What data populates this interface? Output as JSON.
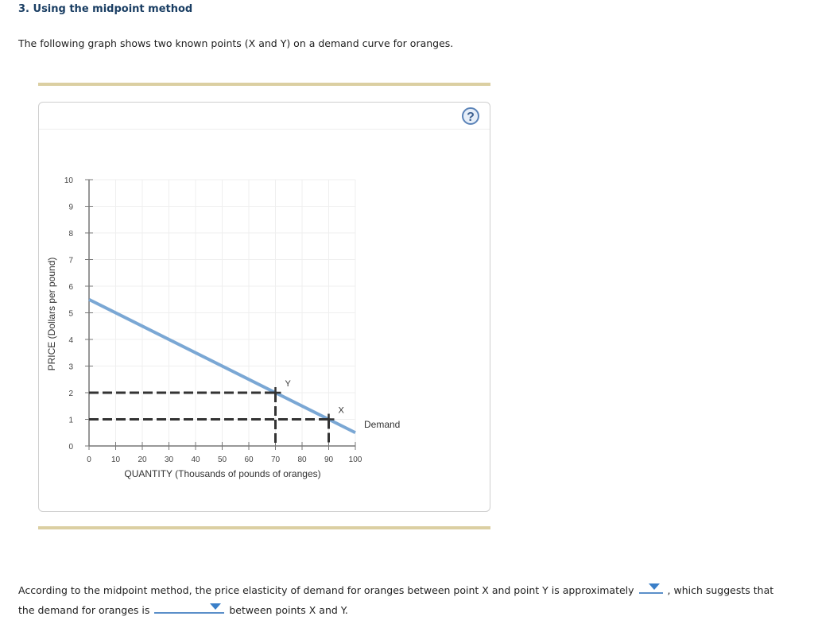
{
  "question": {
    "title": "3. Using the midpoint method",
    "intro": "The following graph shows two known points (X and Y) on a demand curve for oranges."
  },
  "panel": {
    "help_icon": "?"
  },
  "chart_data": {
    "type": "line",
    "title": "",
    "xlabel": "QUANTITY (Thousands of pounds of oranges)",
    "ylabel": "PRICE (Dollars per pound)",
    "xlim": [
      0,
      100
    ],
    "ylim": [
      0,
      10
    ],
    "x_ticks": [
      "0",
      "10",
      "20",
      "30",
      "40",
      "50",
      "60",
      "70",
      "80",
      "90",
      "100"
    ],
    "y_ticks": [
      "0",
      "1",
      "2",
      "3",
      "4",
      "5",
      "6",
      "7",
      "8",
      "9",
      "10"
    ],
    "grid": true,
    "series": [
      {
        "name": "Demand",
        "color": "#7aa7d4",
        "x": [
          0,
          100
        ],
        "y": [
          5.5,
          0.5
        ]
      }
    ],
    "points": [
      {
        "label": "Y",
        "x": 70,
        "y": 2
      },
      {
        "label": "X",
        "x": 90,
        "y": 1
      }
    ],
    "legend": {
      "entries": [
        "Demand"
      ],
      "position": "right of curve end"
    }
  },
  "answer": {
    "line1_before": "According to the midpoint method, the price elasticity of demand for oranges between point X and point Y is approximately",
    "line1_after": ", which suggests that",
    "line2_before": "the demand for oranges is",
    "line2_after": "between points X and Y.",
    "dropdown1_value": "",
    "dropdown2_value": ""
  }
}
